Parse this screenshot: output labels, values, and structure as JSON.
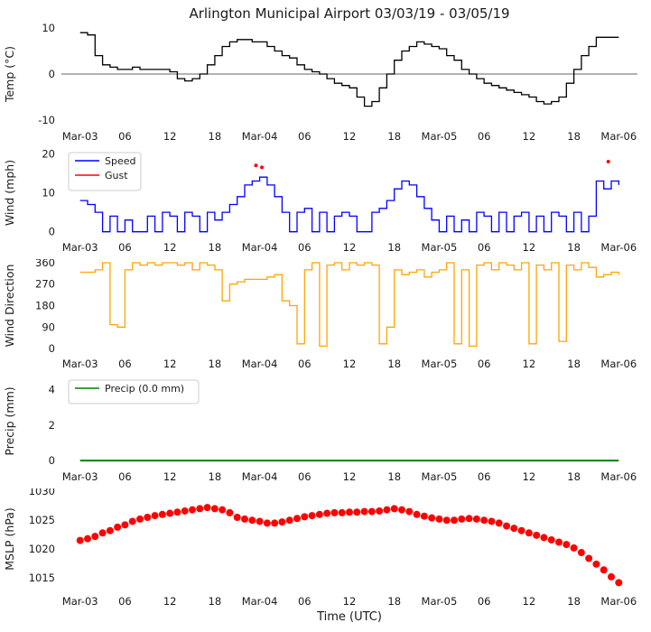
{
  "title": "Arlington Municipal Airport 03/03/19 - 03/05/19",
  "xlabel": "Time (UTC)",
  "colors": {
    "temperature": "#000000",
    "speed": "#0000ff",
    "gust": "#ff0000",
    "wind_direction": "#ffa500",
    "precip": "#008000",
    "mslp": "#ff0000",
    "zero_line": "#333333",
    "legend_border": "#cccccc",
    "text": "#1a1a1a"
  },
  "x_axis": {
    "xlim": [
      -2.5,
      74.5
    ],
    "hours": [
      0,
      1,
      2,
      3,
      4,
      5,
      6,
      7,
      8,
      9,
      10,
      11,
      12,
      13,
      14,
      15,
      16,
      17,
      18,
      19,
      20,
      21,
      22,
      23,
      24,
      25,
      26,
      27,
      28,
      29,
      30,
      31,
      32,
      33,
      34,
      35,
      36,
      37,
      38,
      39,
      40,
      41,
      42,
      43,
      44,
      45,
      46,
      47,
      48,
      49,
      50,
      51,
      52,
      53,
      54,
      55,
      56,
      57,
      58,
      59,
      60,
      61,
      62,
      63,
      64,
      65,
      66,
      67,
      68,
      69,
      70,
      71,
      72
    ],
    "tick_positions": [
      0,
      6,
      12,
      18,
      24,
      30,
      36,
      42,
      48,
      54,
      60,
      66,
      72
    ],
    "tick_labels": [
      "Mar-03",
      "06",
      "12",
      "18",
      "Mar-04",
      "06",
      "12",
      "18",
      "Mar-05",
      "06",
      "12",
      "18",
      "Mar-06"
    ]
  },
  "chart_data": [
    {
      "type": "line",
      "name": "temperature",
      "ylabel": "Temp (°C)",
      "ylim": [
        -11,
        11
      ],
      "yticks": [
        -10,
        0,
        10
      ],
      "hline": 0,
      "series": [
        {
          "name": "Temperature",
          "color": "#000000",
          "type": "step",
          "values": [
            9,
            8.5,
            4,
            2,
            1.5,
            1,
            1,
            1.5,
            1,
            1,
            1,
            1,
            0.5,
            -1,
            -1.5,
            -1,
            0,
            2,
            4,
            6,
            7,
            7.5,
            7.5,
            7,
            7,
            6,
            5,
            4,
            3.5,
            2,
            1,
            0.5,
            0,
            -1,
            -2,
            -2.5,
            -3,
            -5,
            -7,
            -6,
            -3,
            0,
            3,
            5,
            6,
            7,
            6.5,
            6,
            5.5,
            4,
            3,
            1,
            0,
            -1,
            -2,
            -2.5,
            -3,
            -3.5,
            -4,
            -4.5,
            -5,
            -6,
            -6.5,
            -6,
            -5,
            -2,
            1,
            4,
            6,
            8,
            8,
            8,
            8
          ]
        }
      ]
    },
    {
      "type": "line",
      "name": "wind",
      "ylabel": "Wind (mph)",
      "ylim": [
        -1,
        21
      ],
      "yticks": [
        0,
        10,
        20
      ],
      "legend": [
        {
          "label": "Speed",
          "color": "#0000ff"
        },
        {
          "label": "Gust",
          "color": "#ff0000"
        }
      ],
      "series": [
        {
          "name": "Speed",
          "color": "#0000ff",
          "type": "step",
          "values": [
            8,
            7,
            5,
            0,
            4,
            0,
            3,
            0,
            0,
            4,
            0,
            5,
            4,
            0,
            5,
            4,
            0,
            5,
            3,
            5,
            7,
            9,
            12,
            13,
            14,
            12,
            9,
            5,
            0,
            5,
            6,
            0,
            5,
            0,
            4,
            5,
            4,
            0,
            0,
            5,
            6,
            8,
            11,
            13,
            12,
            9,
            6,
            3,
            0,
            4,
            0,
            3,
            0,
            5,
            4,
            0,
            5,
            0,
            4,
            5,
            0,
            4,
            0,
            5,
            4,
            0,
            5,
            0,
            4,
            13,
            11,
            13,
            12
          ]
        },
        {
          "name": "Gust",
          "color": "#ff0000",
          "type": "scatter",
          "r": 2,
          "x": [
            23.5,
            24.3,
            70.6
          ],
          "values": [
            17,
            16.5,
            18
          ]
        }
      ]
    },
    {
      "type": "line",
      "name": "wind-direction",
      "ylabel": "Wind Direction",
      "ylim": [
        -15,
        375
      ],
      "yticks": [
        0,
        90,
        180,
        270,
        360
      ],
      "series": [
        {
          "name": "Direction",
          "color": "#ffa500",
          "type": "step",
          "values": [
            320,
            320,
            330,
            360,
            100,
            90,
            330,
            360,
            350,
            360,
            350,
            360,
            360,
            350,
            360,
            330,
            360,
            350,
            330,
            200,
            270,
            280,
            290,
            290,
            290,
            300,
            310,
            200,
            180,
            20,
            330,
            360,
            10,
            350,
            360,
            330,
            360,
            350,
            360,
            350,
            20,
            90,
            330,
            310,
            320,
            330,
            300,
            320,
            330,
            360,
            20,
            330,
            10,
            350,
            360,
            330,
            360,
            350,
            330,
            360,
            20,
            350,
            330,
            360,
            30,
            350,
            330,
            360,
            340,
            300,
            310,
            320,
            310
          ]
        }
      ]
    },
    {
      "type": "line",
      "name": "precip",
      "ylabel": "Precip (mm)",
      "ylim": [
        -0.25,
        4.7
      ],
      "yticks": [
        0,
        2,
        4
      ],
      "legend": [
        {
          "label": "Precip (0.0 mm)",
          "color": "#008000"
        }
      ],
      "series": [
        {
          "name": "Precip",
          "color": "#008000",
          "type": "line",
          "width": 2,
          "x": [
            0,
            72
          ],
          "values": [
            0,
            0
          ]
        }
      ]
    },
    {
      "type": "scatter",
      "name": "mslp",
      "ylabel": "MSLP (hPa)",
      "ylim": [
        1013,
        1030.5
      ],
      "yticks": [
        1015,
        1020,
        1025,
        1030
      ],
      "series": [
        {
          "name": "MSLP",
          "color": "#ff0000",
          "type": "scatter",
          "r": 4,
          "values": [
            1021.5,
            1021.8,
            1022.2,
            1022.8,
            1023.2,
            1023.8,
            1024.2,
            1024.8,
            1025.2,
            1025.5,
            1025.8,
            1026.0,
            1026.2,
            1026.4,
            1026.6,
            1026.8,
            1027.0,
            1027.2,
            1027.0,
            1026.8,
            1026.3,
            1025.5,
            1025.2,
            1025.0,
            1024.8,
            1024.5,
            1024.5,
            1024.7,
            1025.0,
            1025.3,
            1025.6,
            1025.8,
            1026.0,
            1026.2,
            1026.3,
            1026.3,
            1026.4,
            1026.4,
            1026.5,
            1026.5,
            1026.6,
            1026.8,
            1027.0,
            1026.8,
            1026.5,
            1026.0,
            1025.7,
            1025.4,
            1025.2,
            1025.0,
            1025.0,
            1025.2,
            1025.3,
            1025.2,
            1025.0,
            1024.8,
            1024.5,
            1024.0,
            1023.6,
            1023.2,
            1022.8,
            1022.4,
            1022.0,
            1021.6,
            1021.2,
            1020.8,
            1020.2,
            1019.4,
            1018.4,
            1017.4,
            1016.4,
            1015.2,
            1014.2
          ]
        }
      ]
    }
  ]
}
